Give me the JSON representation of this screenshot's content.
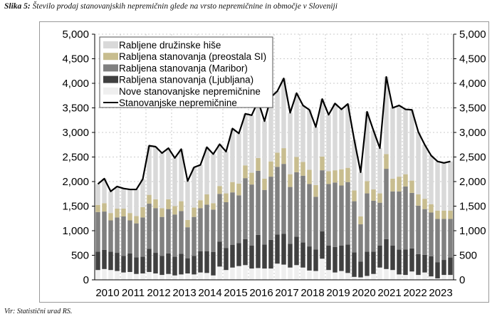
{
  "caption": {
    "label": "Slika 5:",
    "text": " Število prodaj stanovanjskih nepremičnin glede na vrsto nepremičnine in območje v Sloveniji"
  },
  "source": "Vir: Statistični urad RS.",
  "chart_data": {
    "type": "bar",
    "stacked": true,
    "frequency": "quarterly",
    "categories_years": [
      "2010",
      "2011",
      "2012",
      "2013",
      "2014",
      "2015",
      "2016",
      "2017",
      "2018",
      "2019",
      "2020",
      "2021",
      "2022",
      "2023"
    ],
    "ylim": [
      0,
      5000
    ],
    "yticks": [
      "0",
      "500",
      "1,000",
      "1,500",
      "2,000",
      "2,500",
      "3,000",
      "3,500",
      "4,000",
      "4,500",
      "5,000"
    ],
    "secondary_yticks": [
      "0",
      "500",
      "1,000",
      "1,500",
      "2,000",
      "2,500",
      "3,000",
      "3,500",
      "4,000",
      "4,500",
      "5,000"
    ],
    "grid": true,
    "legend_position": "top-left",
    "series": [
      {
        "name": "Nove stanovanjske nepremičnine",
        "color": "#efefef",
        "values": [
          200,
          220,
          200,
          180,
          150,
          160,
          120,
          130,
          160,
          130,
          100,
          120,
          90,
          110,
          130,
          110,
          150,
          140,
          90,
          270,
          200,
          250,
          280,
          300,
          230,
          240,
          230,
          230,
          330,
          310,
          250,
          300,
          250,
          190,
          180,
          430,
          200,
          150,
          180,
          140,
          60,
          50,
          80,
          120,
          250,
          220,
          200,
          110,
          100,
          170,
          100,
          150,
          70,
          30,
          100,
          100
        ]
      },
      {
        "name": "Rabljena stanovanja (Ljubljana)",
        "color": "#404040",
        "values": [
          375,
          390,
          375,
          370,
          340,
          380,
          340,
          340,
          470,
          420,
          390,
          420,
          380,
          420,
          310,
          380,
          430,
          440,
          480,
          510,
          450,
          460,
          470,
          530,
          470,
          675,
          490,
          585,
          590,
          625,
          485,
          580,
          510,
          490,
          440,
          555,
          500,
          520,
          520,
          580,
          500,
          320,
          495,
          455,
          450,
          610,
          500,
          505,
          520,
          470,
          425,
          360,
          410,
          330,
          305,
          355
        ]
      },
      {
        "name": "Rabljena stanovanja (Maribor)",
        "color": "#808080",
        "values": [
          805,
          780,
          635,
          720,
          800,
          670,
          690,
          800,
          920,
          910,
          790,
          900,
          860,
          870,
          630,
          790,
          880,
          950,
          860,
          970,
          930,
          1070,
          970,
          1240,
          1240,
          1305,
          1110,
          1285,
          1380,
          1425,
          1155,
          1310,
          1360,
          1270,
          1070,
          1245,
          1250,
          1310,
          1220,
          1270,
          1040,
          760,
          1185,
          1035,
          870,
          1430,
          1100,
          1185,
          1280,
          1130,
          985,
          930,
          890,
          880,
          835,
          785
        ]
      },
      {
        "name": "Rabljena stanovanja (preostala SI)",
        "color": "#c8bd8f",
        "values": [
          145,
          170,
          150,
          180,
          160,
          150,
          150,
          210,
          180,
          180,
          180,
          200,
          170,
          200,
          150,
          190,
          160,
          210,
          130,
          160,
          180,
          210,
          240,
          260,
          240,
          260,
          230,
          310,
          290,
          320,
          260,
          310,
          280,
          290,
          240,
          280,
          260,
          250,
          330,
          290,
          220,
          160,
          250,
          230,
          190,
          300,
          260,
          300,
          250,
          250,
          230,
          210,
          170,
          170,
          170,
          170
        ]
      },
      {
        "name": "Rabljene družinske hiše",
        "color": "#d9d9d9",
        "values": [
          425,
          500,
          440,
          450,
          410,
          480,
          540,
          570,
          1000,
          1070,
          1120,
          1040,
          980,
          1060,
          790,
          820,
          720,
          960,
          1000,
          850,
          850,
          1090,
          1020,
          1050,
          1170,
          1160,
          1170,
          1310,
          1250,
          1420,
          1250,
          1300,
          1150,
          1220,
          1180,
          1170,
          1150,
          1360,
          1220,
          1300,
          1030,
          900,
          1410,
          1200,
          920,
          1570,
          1440,
          1450,
          1320,
          1440,
          1270,
          1100,
          990,
          1000,
          970,
          1000
        ]
      }
    ],
    "line": {
      "name": "Stanovanjske nepremičnine",
      "color": "#000000",
      "values": [
        1950,
        2060,
        1800,
        1900,
        1860,
        1840,
        1840,
        2050,
        2730,
        2710,
        2580,
        2680,
        2480,
        2660,
        2010,
        2290,
        2340,
        2700,
        2560,
        2760,
        2610,
        3080,
        2980,
        3380,
        3350,
        3640,
        3230,
        3720,
        3840,
        4100,
        3400,
        3800,
        3550,
        3460,
        3110,
        3680,
        3360,
        3590,
        3470,
        3580,
        2850,
        2190,
        3420,
        3040,
        2680,
        4130,
        3500,
        3550,
        3470,
        3460,
        3010,
        2750,
        2530,
        2410,
        2380,
        2410
      ]
    },
    "legend_order": [
      "Rabljene družinske hiše",
      "Rabljena stanovanja (preostala SI)",
      "Rabljena stanovanja (Maribor)",
      "Rabljena stanovanja (Ljubljana)",
      "Nove stanovanjske nepremičnine",
      "Stanovanjske nepremičnine"
    ]
  }
}
